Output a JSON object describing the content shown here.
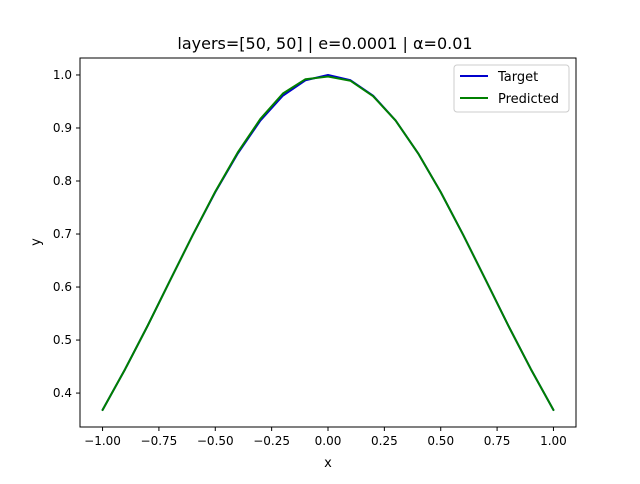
{
  "chart_data": {
    "type": "line",
    "title": "layers=[50, 50] | e=0.0001 | α=0.01",
    "xlabel": "x",
    "ylabel": "y",
    "xlim": [
      -1.1,
      1.1
    ],
    "ylim": [
      0.336,
      1.032
    ],
    "xticks": [
      -1.0,
      -0.75,
      -0.5,
      -0.25,
      0.0,
      0.25,
      0.5,
      0.75,
      1.0
    ],
    "xtick_labels": [
      "−1.00",
      "−0.75",
      "−0.50",
      "−0.25",
      "0.00",
      "0.25",
      "0.50",
      "0.75",
      "1.00"
    ],
    "yticks": [
      0.4,
      0.5,
      0.6,
      0.7,
      0.8,
      0.9,
      1.0
    ],
    "ytick_labels": [
      "0.4",
      "0.5",
      "0.6",
      "0.7",
      "0.8",
      "0.9",
      "1.0"
    ],
    "grid": false,
    "legend_position": "top-right",
    "series": [
      {
        "name": "Target",
        "color": "#0000cc",
        "x": [
          -1.0,
          -0.9,
          -0.8,
          -0.7,
          -0.6,
          -0.5,
          -0.4,
          -0.3,
          -0.2,
          -0.1,
          0.0,
          0.1,
          0.2,
          0.3,
          0.4,
          0.5,
          0.6,
          0.7,
          0.8,
          0.9,
          1.0
        ],
        "y": [
          0.368,
          0.445,
          0.527,
          0.613,
          0.698,
          0.779,
          0.852,
          0.914,
          0.961,
          0.99,
          1.0,
          0.99,
          0.961,
          0.914,
          0.852,
          0.779,
          0.698,
          0.613,
          0.527,
          0.445,
          0.368
        ]
      },
      {
        "name": "Predicted",
        "color": "#008000",
        "x": [
          -1.0,
          -0.9,
          -0.8,
          -0.7,
          -0.6,
          -0.5,
          -0.4,
          -0.3,
          -0.2,
          -0.1,
          0.0,
          0.1,
          0.2,
          0.3,
          0.4,
          0.5,
          0.6,
          0.7,
          0.8,
          0.9,
          1.0
        ],
        "y": [
          0.368,
          0.445,
          0.527,
          0.613,
          0.698,
          0.78,
          0.854,
          0.917,
          0.965,
          0.992,
          0.997,
          0.989,
          0.96,
          0.914,
          0.852,
          0.779,
          0.698,
          0.613,
          0.527,
          0.445,
          0.368
        ]
      }
    ]
  }
}
